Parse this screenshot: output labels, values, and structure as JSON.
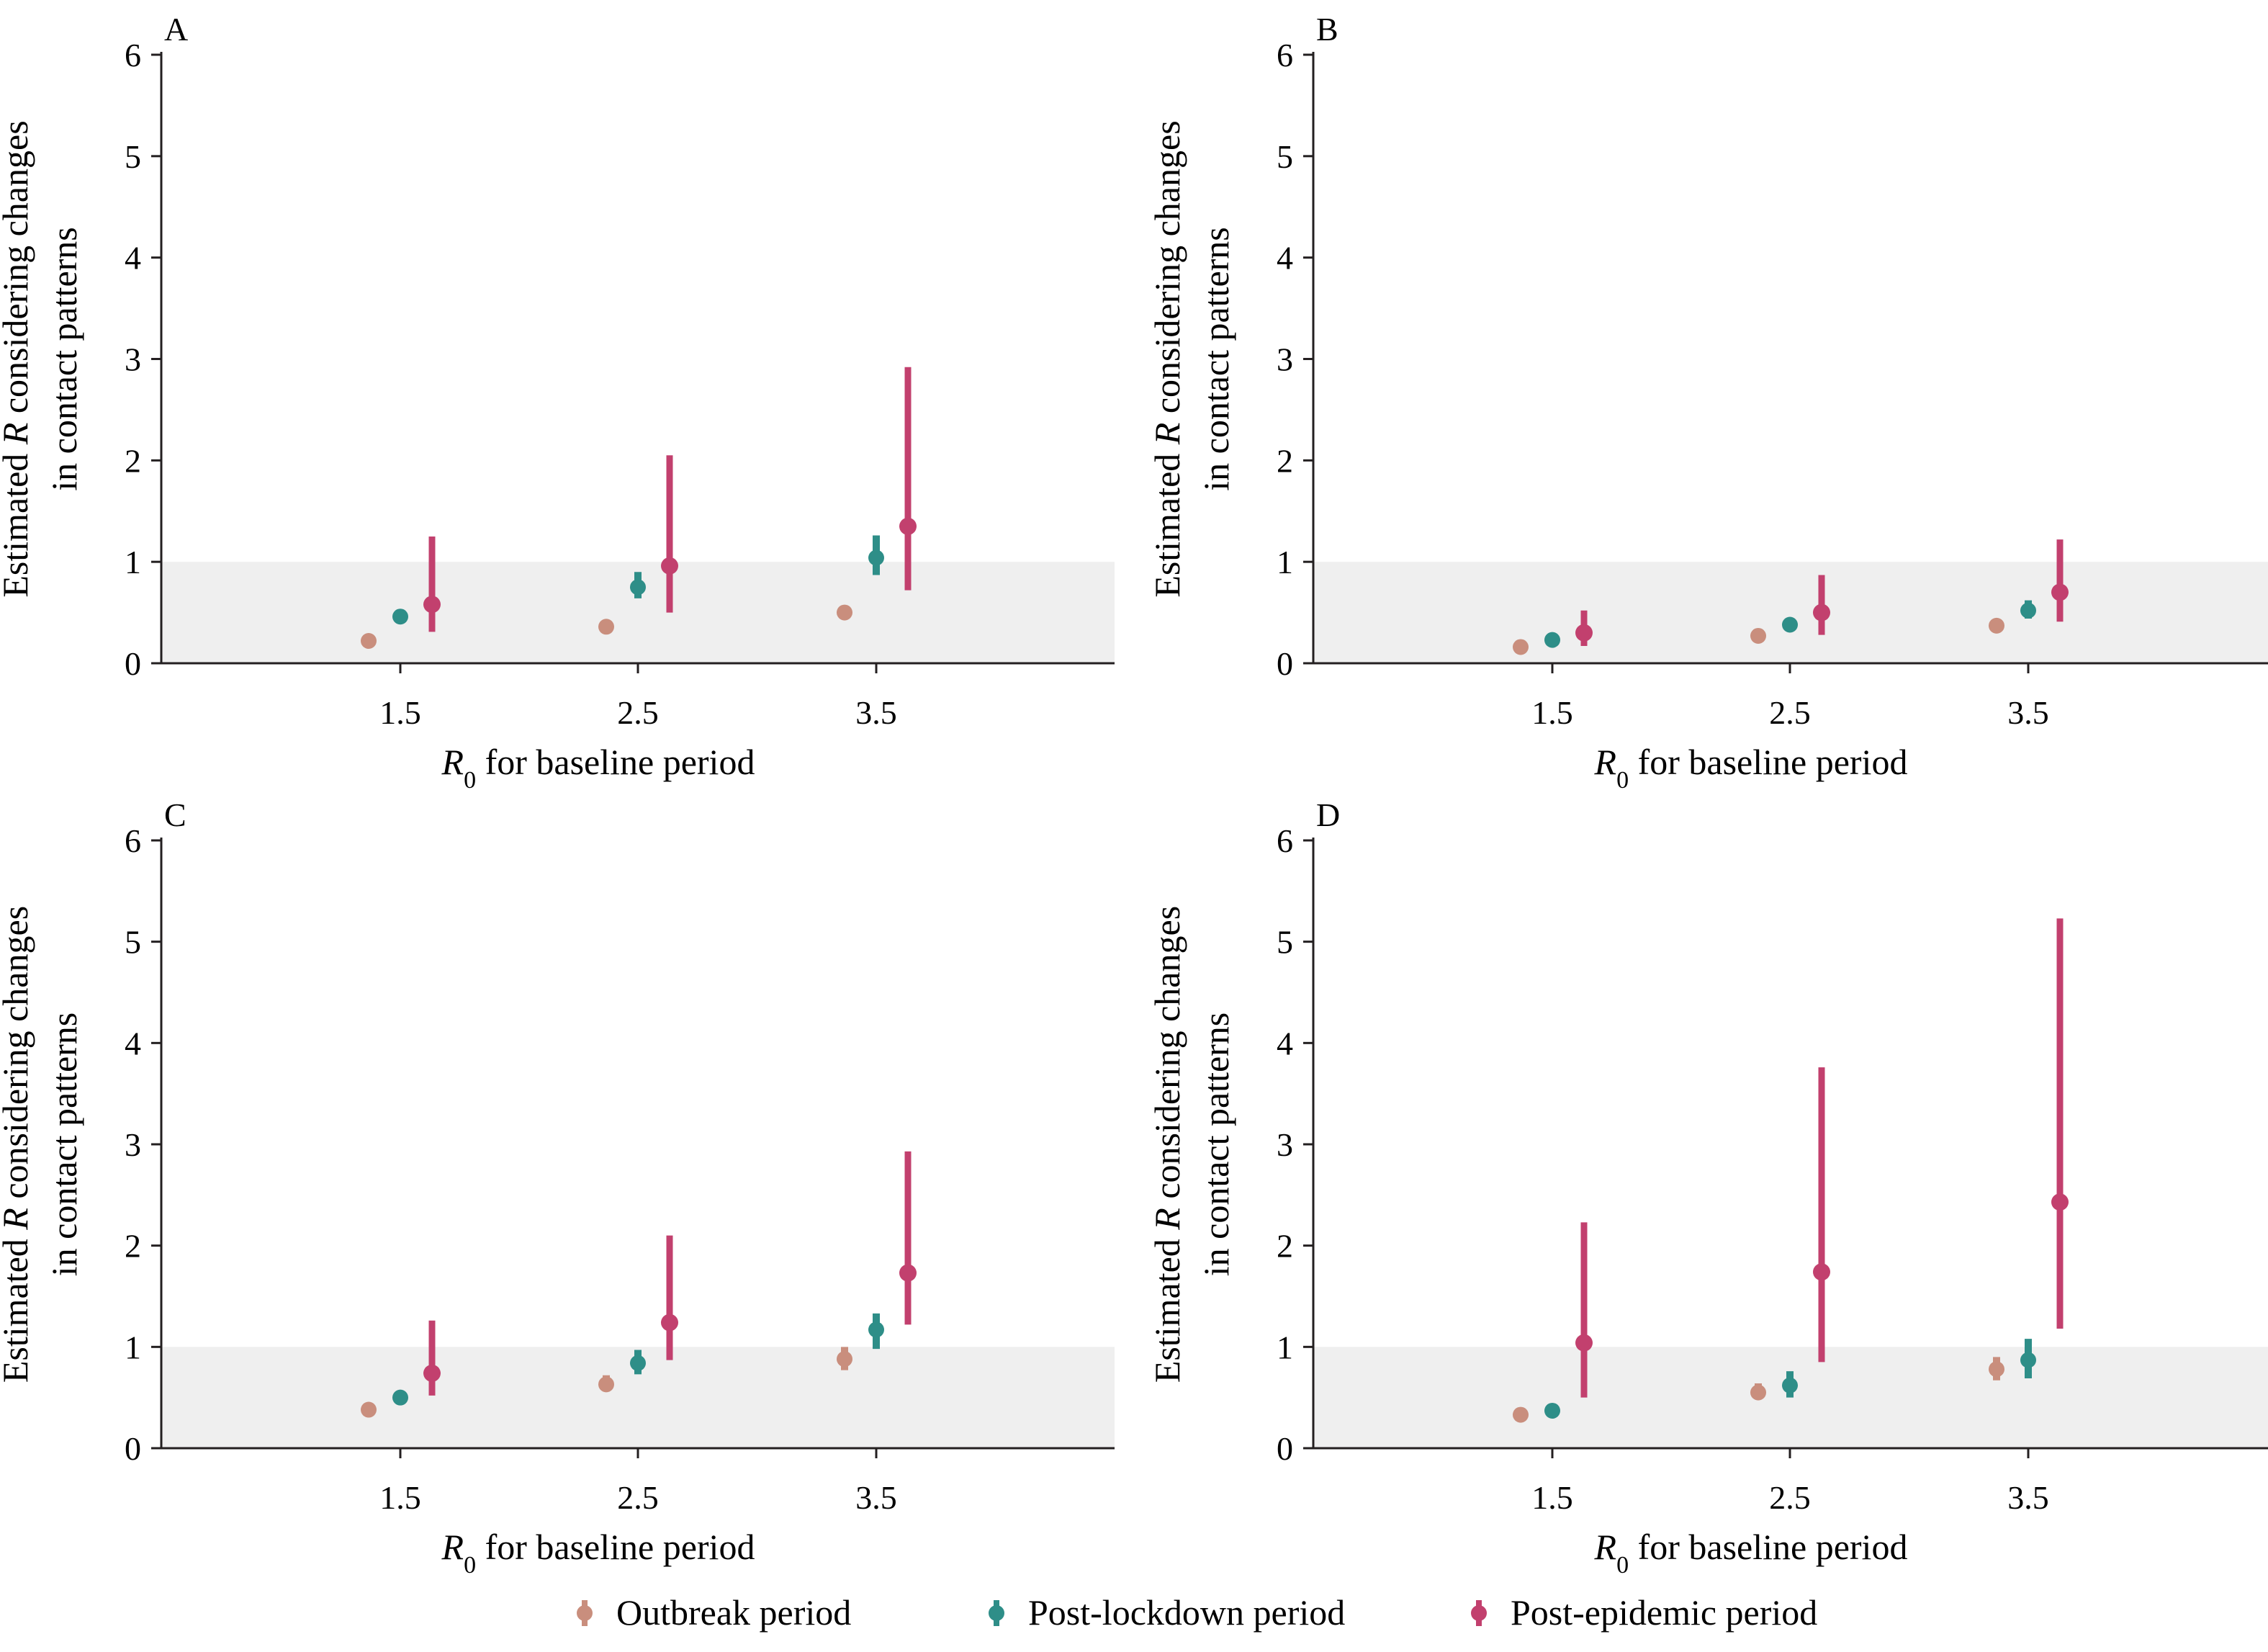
{
  "colors": {
    "outbreak": "#c98e7d",
    "post_lockdown": "#2e8e88",
    "post_epidemic": "#c2406e",
    "reference_band": "#efefef",
    "axis": "#231f20"
  },
  "figure": {
    "y_axis_title_line1_pre": "Estimated ",
    "y_axis_title_line1_italic": "R",
    "y_axis_title_line1_post": " considering changes",
    "y_axis_title_line2": "in contact patterns",
    "x_axis_title_italic": "R",
    "x_axis_title_subscript": "0",
    "x_axis_title_post": " for baseline period"
  },
  "legend": {
    "items": [
      {
        "label": "Outbreak period",
        "series": "outbreak"
      },
      {
        "label": "Post-lockdown period",
        "series": "post_lockdown"
      },
      {
        "label": "Post-epidemic period",
        "series": "post_epidemic"
      }
    ]
  },
  "chart_data": [
    {
      "type": "scatter",
      "panel": "A",
      "categories": [
        "1.5",
        "2.5",
        "3.5"
      ],
      "ylim": [
        0,
        6
      ],
      "yticks": [
        "0",
        "1",
        "2",
        "3",
        "4",
        "5",
        "6"
      ],
      "reference_band": [
        0,
        1
      ],
      "series": [
        {
          "name": "Outbreak period",
          "key": "outbreak",
          "values": [
            0.22,
            0.36,
            0.5
          ],
          "lower": [
            0.2,
            0.33,
            0.46
          ],
          "upper": [
            0.24,
            0.39,
            0.54
          ]
        },
        {
          "name": "Post-lockdown period",
          "key": "post_lockdown",
          "values": [
            0.46,
            0.75,
            1.04
          ],
          "lower": [
            0.4,
            0.64,
            0.87
          ],
          "upper": [
            0.52,
            0.9,
            1.26
          ]
        },
        {
          "name": "Post-epidemic period",
          "key": "post_epidemic",
          "values": [
            0.58,
            0.96,
            1.35
          ],
          "lower": [
            0.31,
            0.5,
            0.72
          ],
          "upper": [
            1.25,
            2.05,
            2.92
          ]
        }
      ]
    },
    {
      "type": "scatter",
      "panel": "B",
      "categories": [
        "1.5",
        "2.5",
        "3.5"
      ],
      "ylim": [
        0,
        6
      ],
      "yticks": [
        "0",
        "1",
        "2",
        "3",
        "4",
        "5",
        "6"
      ],
      "reference_band": [
        0,
        1
      ],
      "series": [
        {
          "name": "Outbreak period",
          "key": "outbreak",
          "values": [
            0.16,
            0.27,
            0.37
          ],
          "lower": [
            0.14,
            0.25,
            0.34
          ],
          "upper": [
            0.18,
            0.29,
            0.4
          ]
        },
        {
          "name": "Post-lockdown period",
          "key": "post_lockdown",
          "values": [
            0.23,
            0.38,
            0.52
          ],
          "lower": [
            0.2,
            0.34,
            0.44
          ],
          "upper": [
            0.26,
            0.42,
            0.62
          ]
        },
        {
          "name": "Post-epidemic period",
          "key": "post_epidemic",
          "values": [
            0.3,
            0.5,
            0.7
          ],
          "lower": [
            0.17,
            0.28,
            0.41
          ],
          "upper": [
            0.52,
            0.87,
            1.22
          ]
        }
      ]
    },
    {
      "type": "scatter",
      "panel": "C",
      "categories": [
        "1.5",
        "2.5",
        "3.5"
      ],
      "ylim": [
        0,
        6
      ],
      "yticks": [
        "0",
        "1",
        "2",
        "3",
        "4",
        "5",
        "6"
      ],
      "reference_band": [
        0,
        1
      ],
      "series": [
        {
          "name": "Outbreak period",
          "key": "outbreak",
          "values": [
            0.38,
            0.63,
            0.88
          ],
          "lower": [
            0.34,
            0.56,
            0.77
          ],
          "upper": [
            0.42,
            0.72,
            1.0
          ]
        },
        {
          "name": "Post-lockdown period",
          "key": "post_lockdown",
          "values": [
            0.5,
            0.84,
            1.17
          ],
          "lower": [
            0.45,
            0.73,
            0.98
          ],
          "upper": [
            0.55,
            0.97,
            1.33
          ]
        },
        {
          "name": "Post-epidemic period",
          "key": "post_epidemic",
          "values": [
            0.74,
            1.24,
            1.73
          ],
          "lower": [
            0.52,
            0.87,
            1.22
          ],
          "upper": [
            1.26,
            2.1,
            2.93
          ]
        }
      ]
    },
    {
      "type": "scatter",
      "panel": "D",
      "categories": [
        "1.5",
        "2.5",
        "3.5"
      ],
      "ylim": [
        0,
        6
      ],
      "yticks": [
        "0",
        "1",
        "2",
        "3",
        "4",
        "5",
        "6"
      ],
      "reference_band": [
        0,
        1
      ],
      "series": [
        {
          "name": "Outbreak period",
          "key": "outbreak",
          "values": [
            0.33,
            0.55,
            0.78
          ],
          "lower": [
            0.29,
            0.48,
            0.67
          ],
          "upper": [
            0.37,
            0.64,
            0.9
          ]
        },
        {
          "name": "Post-lockdown period",
          "key": "post_lockdown",
          "values": [
            0.37,
            0.62,
            0.87
          ],
          "lower": [
            0.32,
            0.5,
            0.69
          ],
          "upper": [
            0.43,
            0.76,
            1.08
          ]
        },
        {
          "name": "Post-epidemic period",
          "key": "post_epidemic",
          "values": [
            1.04,
            1.74,
            2.43
          ],
          "lower": [
            0.5,
            0.85,
            1.18
          ],
          "upper": [
            2.23,
            3.76,
            5.23
          ]
        }
      ]
    }
  ]
}
